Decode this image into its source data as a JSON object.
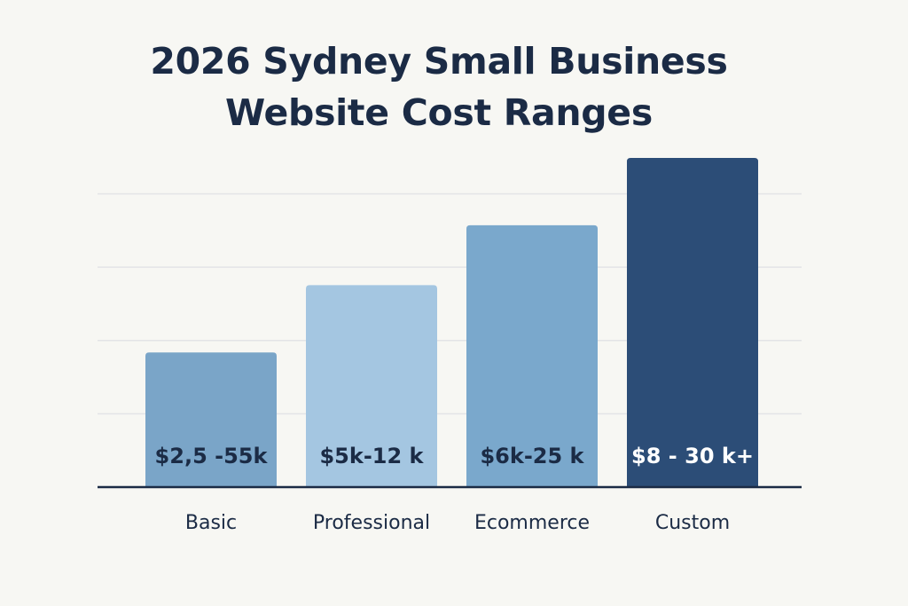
{
  "chart_data": {
    "type": "bar",
    "title": [
      "2026 Sydney Small Business",
      "Website Cost Ranges"
    ],
    "categories": [
      "Basic",
      "Professional",
      "Ecommerce",
      "Custom"
    ],
    "values": [
      1.8,
      2.7,
      3.5,
      4.4
    ],
    "value_labels": [
      "$2,5 -55k",
      "$5k-12 k",
      "$6k-25 k",
      "$8 - 30 k+"
    ],
    "ylim": [
      0,
      4.4
    ],
    "grid": true,
    "legend": "none",
    "colors": [
      "#7aa5c8",
      "#a4c6e1",
      "#7aa8cc",
      "#2c4d77"
    ],
    "label_colors": [
      "#1b2b45",
      "#1b2b45",
      "#1b2b45",
      "#ffffff"
    ]
  }
}
